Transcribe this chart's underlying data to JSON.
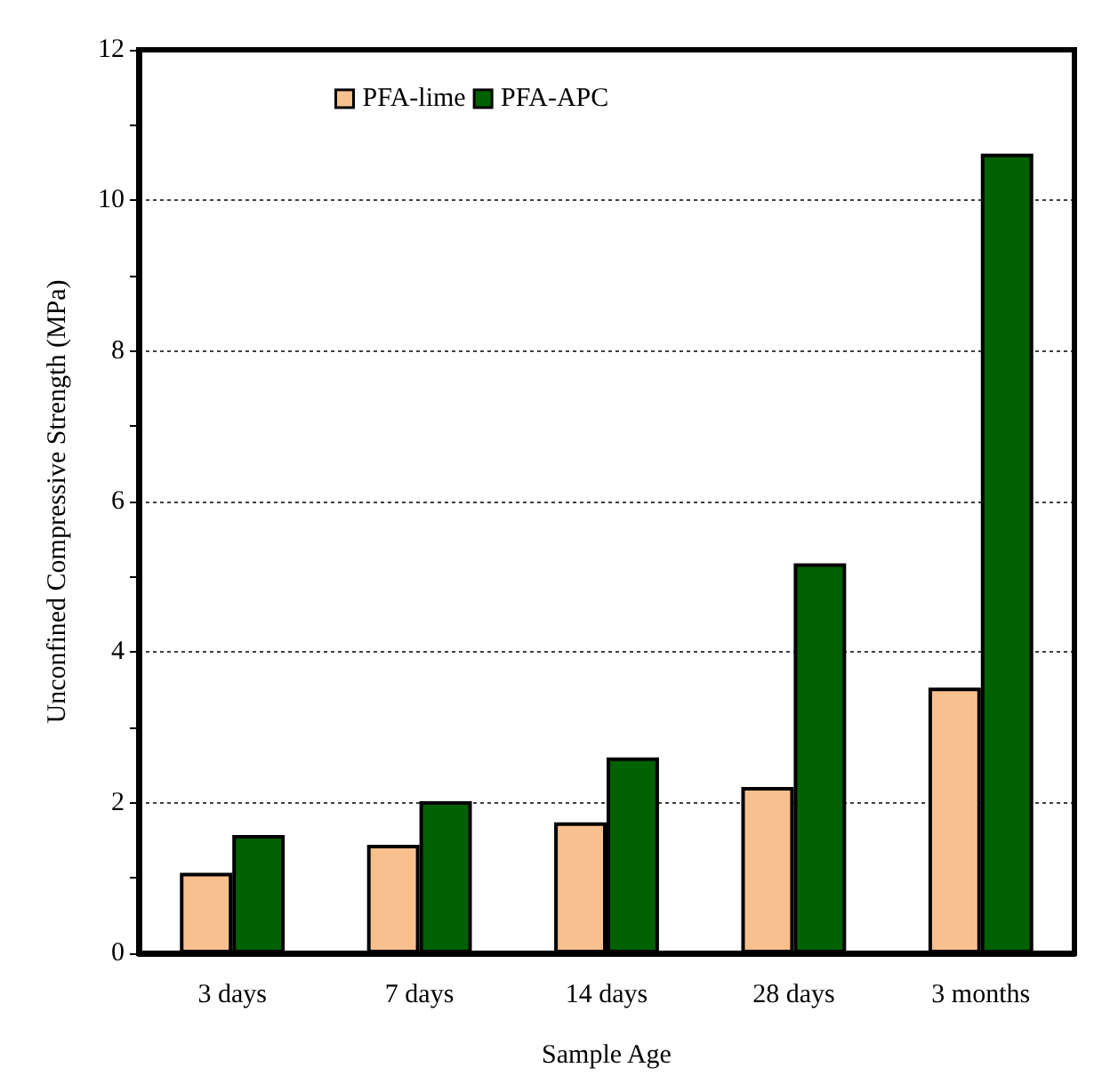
{
  "chart_data": {
    "type": "bar",
    "xlabel": "Sample Age",
    "ylabel": "Unconfined Compressive Strength (MPa)",
    "categories": [
      "3 days",
      "7 days",
      "14 days",
      "28 days",
      "3 months"
    ],
    "series": [
      {
        "name": "PFA-lime",
        "color": "#f9c08f",
        "values": [
          1.07,
          1.44,
          1.74,
          2.21,
          3.53
        ]
      },
      {
        "name": "PFA-APC",
        "color": "#006100",
        "values": [
          1.57,
          2.02,
          2.6,
          5.18,
          10.62
        ]
      }
    ],
    "ylim": [
      0,
      12
    ],
    "yticks": [
      0,
      2,
      4,
      6,
      8,
      10,
      12
    ],
    "grid": "y",
    "legend": "top left"
  }
}
